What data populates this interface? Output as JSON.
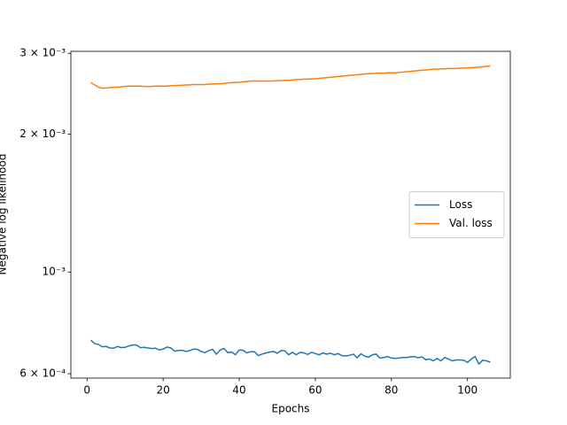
{
  "chart_data": {
    "type": "line",
    "xlabel": "Epochs",
    "ylabel": "Negative log likelihood",
    "log_y": true,
    "legend": "center right",
    "xlim": [
      -4.25,
      111.25
    ],
    "ylim": [
      0.000587,
      0.00303
    ],
    "xticks": [
      0,
      20,
      40,
      60,
      80,
      100
    ],
    "yticks": [
      {
        "value": 0.0006,
        "label": "6 × 10⁻⁴"
      },
      {
        "value": 0.001,
        "label": "10⁻³"
      },
      {
        "value": 0.002,
        "label": "2 × 10⁻³"
      },
      {
        "value": 0.003,
        "label": "3 × 10⁻³"
      }
    ],
    "x": [
      1,
      2,
      3,
      4,
      5,
      6,
      7,
      8,
      9,
      10,
      11,
      12,
      13,
      14,
      15,
      16,
      17,
      18,
      19,
      20,
      21,
      22,
      23,
      24,
      25,
      26,
      27,
      28,
      29,
      30,
      31,
      32,
      33,
      34,
      35,
      36,
      37,
      38,
      39,
      40,
      41,
      42,
      43,
      44,
      45,
      46,
      47,
      48,
      49,
      50,
      51,
      52,
      53,
      54,
      55,
      56,
      57,
      58,
      59,
      60,
      61,
      62,
      63,
      64,
      65,
      66,
      67,
      68,
      69,
      70,
      71,
      72,
      73,
      74,
      75,
      76,
      77,
      78,
      79,
      80,
      81,
      82,
      83,
      84,
      85,
      86,
      87,
      88,
      89,
      90,
      91,
      92,
      93,
      94,
      95,
      96,
      97,
      98,
      99,
      100,
      101,
      102,
      103,
      104,
      105,
      106
    ],
    "series": [
      {
        "name": "Loss",
        "color": "#1f77b4",
        "values": [
          0.00071,
          0.000698,
          0.000695,
          0.000687,
          0.000688,
          0.000683,
          0.000682,
          0.000688,
          0.000684,
          0.000685,
          0.00069,
          0.000693,
          0.000693,
          0.000684,
          0.000685,
          0.000683,
          0.000681,
          0.000682,
          0.000676,
          0.000679,
          0.000686,
          0.000683,
          0.000672,
          0.000674,
          0.000675,
          0.000671,
          0.000674,
          0.000679,
          0.000678,
          0.000671,
          0.000667,
          0.000674,
          0.000678,
          0.000662,
          0.000676,
          0.000681,
          0.000667,
          0.000669,
          0.00066,
          0.000676,
          0.000675,
          0.000666,
          0.00067,
          0.00067,
          0.000657,
          0.000662,
          0.000666,
          0.000669,
          0.000671,
          0.000665,
          0.000674,
          0.000673,
          0.00066,
          0.000668,
          0.00066,
          0.000668,
          0.000666,
          0.000661,
          0.000668,
          0.000664,
          0.00066,
          0.000666,
          0.000662,
          0.000665,
          0.00066,
          0.000664,
          0.000657,
          0.000656,
          0.000658,
          0.000662,
          0.00065,
          0.000663,
          0.000655,
          0.000652,
          0.00066,
          0.000662,
          0.000649,
          0.000651,
          0.000654,
          0.000649,
          0.000648,
          0.000649,
          0.000651,
          0.000651,
          0.000653,
          0.000654,
          0.00065,
          0.000653,
          0.000644,
          0.000646,
          0.00064,
          0.000648,
          0.00064,
          0.000651,
          0.000646,
          0.00064,
          0.000643,
          0.000643,
          0.000642,
          0.000635,
          0.000646,
          0.000654,
          0.00063,
          0.000642,
          0.00064,
          0.000636
        ]
      },
      {
        "name": "Val. loss",
        "color": "#ff7f0e",
        "values": [
          0.00259,
          0.00256,
          0.00253,
          0.00252,
          0.00252,
          0.002525,
          0.00253,
          0.00253,
          0.002535,
          0.00254,
          0.002545,
          0.002545,
          0.002545,
          0.002545,
          0.00254,
          0.00254,
          0.00254,
          0.002545,
          0.002545,
          0.002545,
          0.002545,
          0.00255,
          0.00255,
          0.002555,
          0.002555,
          0.00256,
          0.00256,
          0.002565,
          0.002565,
          0.002565,
          0.002565,
          0.00257,
          0.00257,
          0.002575,
          0.002575,
          0.00258,
          0.002585,
          0.00259,
          0.00259,
          0.002595,
          0.0026,
          0.002605,
          0.00261,
          0.00261,
          0.00261,
          0.00261,
          0.00261,
          0.00261,
          0.00261,
          0.002615,
          0.002615,
          0.00262,
          0.00262,
          0.002625,
          0.00263,
          0.00263,
          0.002635,
          0.002635,
          0.00264,
          0.00264,
          0.002645,
          0.00265,
          0.002655,
          0.00266,
          0.002665,
          0.00267,
          0.002675,
          0.00268,
          0.002685,
          0.00269,
          0.002695,
          0.0027,
          0.002705,
          0.00271,
          0.00271,
          0.002715,
          0.002715,
          0.002715,
          0.00272,
          0.00272,
          0.00272,
          0.002725,
          0.00273,
          0.002735,
          0.00274,
          0.002745,
          0.00275,
          0.002755,
          0.00276,
          0.002765,
          0.00277,
          0.00277,
          0.002775,
          0.002775,
          0.00278,
          0.00278,
          0.00278,
          0.002785,
          0.002785,
          0.00279,
          0.00279,
          0.002795,
          0.0028,
          0.002805,
          0.00281,
          0.002815
        ]
      }
    ]
  }
}
